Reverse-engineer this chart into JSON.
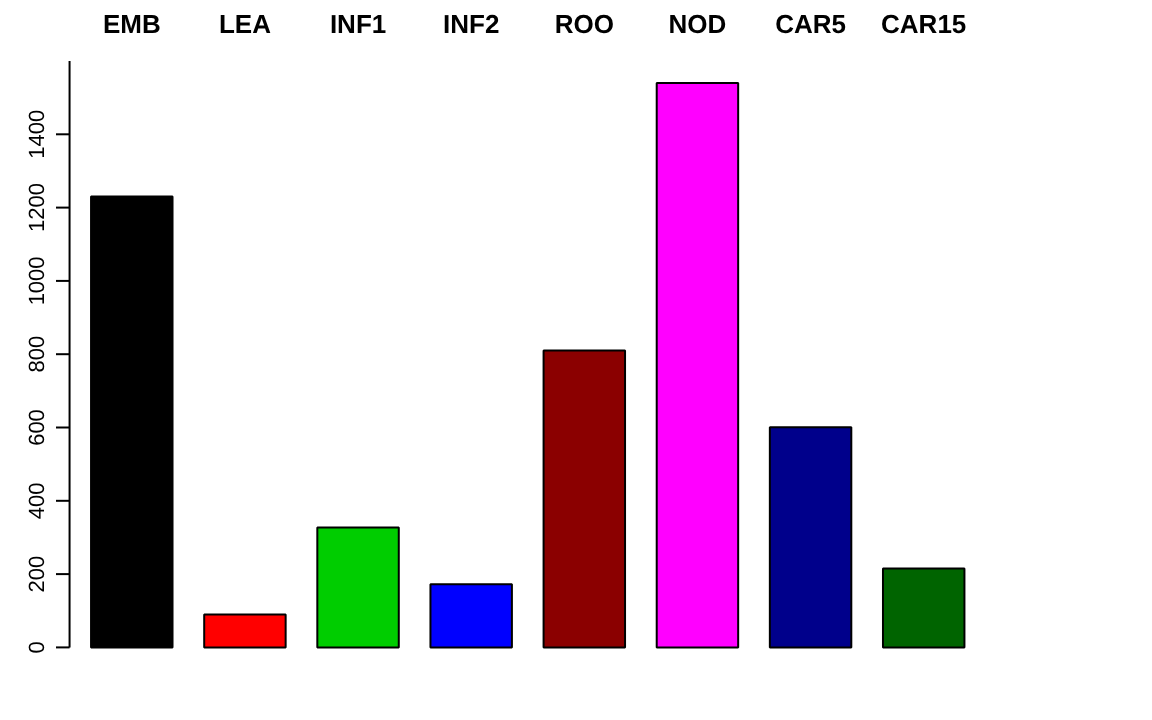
{
  "chart_data": {
    "type": "bar",
    "categories": [
      "EMB",
      "LEA",
      "INF1",
      "INF2",
      "ROO",
      "NOD",
      "CAR5",
      "CAR15"
    ],
    "values": [
      1230,
      90,
      327,
      172,
      810,
      1540,
      601,
      215
    ],
    "colors": [
      "#000000",
      "#ff0000",
      "#00cd00",
      "#0000ff",
      "#8b0000",
      "#ff00ff",
      "#00008b",
      "#006400"
    ],
    "ylim": [
      0,
      1600
    ],
    "yticks": [
      0,
      200,
      400,
      600,
      800,
      1000,
      1200,
      1400
    ],
    "grid": false
  }
}
